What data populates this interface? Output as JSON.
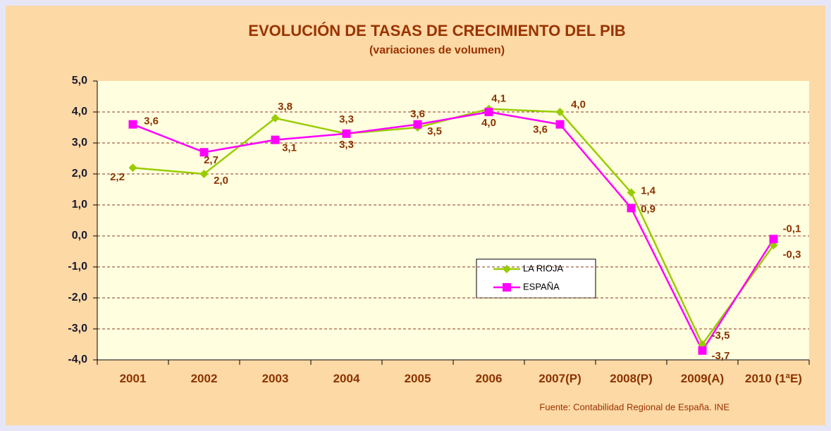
{
  "chart_data": {
    "type": "line",
    "title": "EVOLUCIÓN DE TASAS DE CRECIMIENTO DEL PIB",
    "subtitle": "(variaciones de volumen)",
    "source": "Fuente: Contabilidad Regional de España. INE",
    "categories": [
      "2001",
      "2002",
      "2003",
      "2004",
      "2005",
      "2006",
      "2007(P)",
      "2008(P)",
      "2009(A)",
      "2010 (1ªE)"
    ],
    "series": [
      {
        "name": "LA RIOJA",
        "color": "#99cc00",
        "marker": "diamond",
        "values": [
          2.2,
          2.0,
          3.8,
          3.3,
          3.5,
          4.1,
          4.0,
          1.4,
          -3.5,
          -0.3
        ],
        "value_labels": [
          "2,2",
          "2,0",
          "3,8",
          "3,3",
          "3,5",
          "4,1",
          "4,0",
          "1,4",
          "-3,5",
          "-0,3"
        ]
      },
      {
        "name": "ESPAÑA",
        "color": "#ff00ff",
        "marker": "square",
        "values": [
          3.6,
          2.7,
          3.1,
          3.3,
          3.6,
          4.0,
          3.6,
          0.9,
          -3.7,
          -0.1
        ],
        "value_labels": [
          "3,6",
          "2,7",
          "3,1",
          "3,3",
          "3,6",
          "4,0",
          "3,6",
          "0,9",
          "-3,7",
          "-0,1"
        ]
      }
    ],
    "ylim": [
      -4,
      5
    ],
    "yticks": [
      {
        "value": -4,
        "label": "-4,0"
      },
      {
        "value": -3,
        "label": "-3,0"
      },
      {
        "value": -2,
        "label": "-2,0"
      },
      {
        "value": -1,
        "label": "-1,0"
      },
      {
        "value": 0,
        "label": "0,0"
      },
      {
        "value": 1,
        "label": "1,0"
      },
      {
        "value": 2,
        "label": "2,0"
      },
      {
        "value": 3,
        "label": "3,0"
      },
      {
        "value": 4,
        "label": "4,0"
      },
      {
        "value": 5,
        "label": "5,0"
      }
    ],
    "grid": true
  }
}
